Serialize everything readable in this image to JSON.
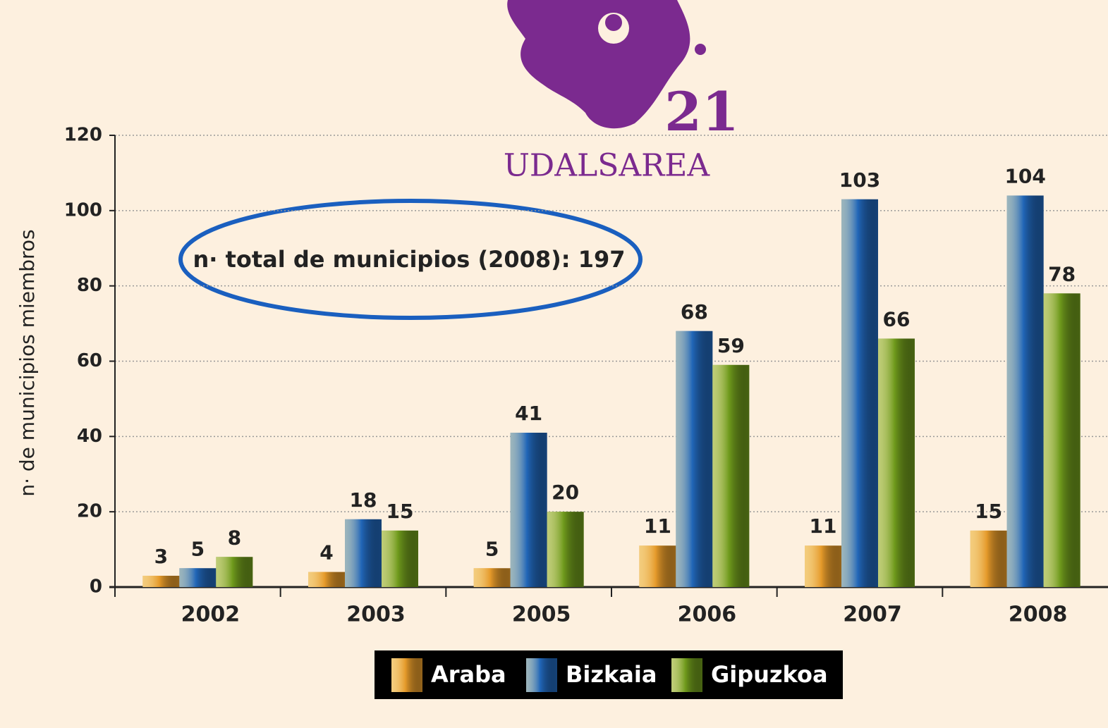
{
  "chart_data": {
    "type": "bar",
    "logo": {
      "number": "21",
      "name": "UDALSAREA"
    },
    "annotation": "n· total de municipios (2008): 197",
    "y_label": "n· de municipios miembros",
    "categories": [
      "2002",
      "2003",
      "2005",
      "2006",
      "2007",
      "2008"
    ],
    "series": [
      {
        "name": "Araba",
        "color": "#e59a2a",
        "values": [
          3,
          4,
          5,
          11,
          11,
          15
        ]
      },
      {
        "name": "Bizkaia",
        "color": "#2166b8",
        "values": [
          5,
          18,
          41,
          68,
          103,
          104
        ]
      },
      {
        "name": "Gipuzkoa",
        "color": "#6f9a1c",
        "values": [
          8,
          15,
          20,
          59,
          66,
          78
        ]
      }
    ],
    "ylim": [
      0,
      120
    ],
    "yticks": [
      0,
      20,
      40,
      60,
      80,
      100,
      120
    ],
    "grid": true,
    "legend": "bottom"
  }
}
